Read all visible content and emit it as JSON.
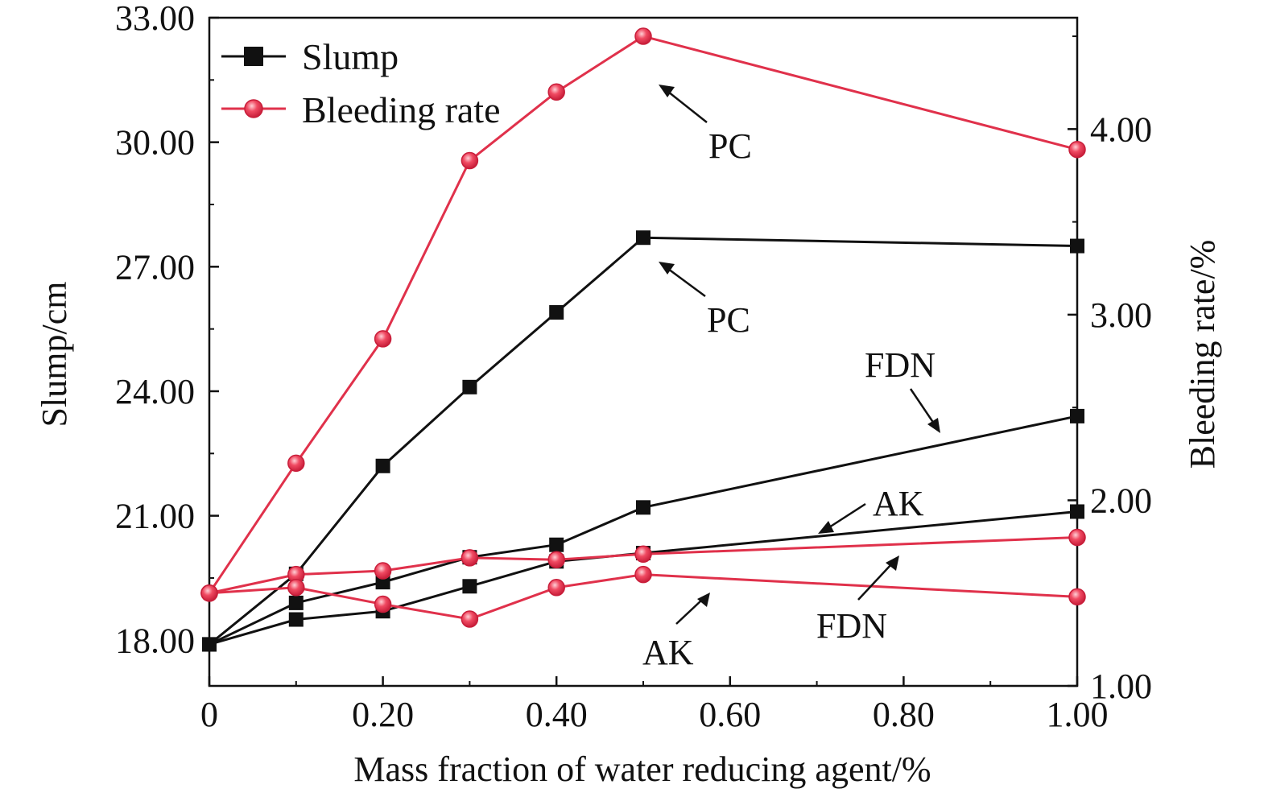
{
  "chart_data": {
    "type": "line",
    "xlabel": "Mass fraction of water reducing agent/%",
    "ylabel": "Slump/cm",
    "y2label": "Bleeding rate/%",
    "xlim": [
      0,
      1.0
    ],
    "ylim": [
      16.9,
      33.0
    ],
    "y2lim": [
      1.0,
      4.6
    ],
    "xticks": [
      "0",
      "0.20",
      "0.40",
      "0.60",
      "0.80",
      "1.00"
    ],
    "xtick_values": [
      0,
      0.2,
      0.4,
      0.6,
      0.8,
      1.0
    ],
    "yticks": [
      "18.00",
      "21.00",
      "24.00",
      "27.00",
      "30.00",
      "33.00"
    ],
    "ytick_values": [
      18,
      21,
      24,
      27,
      30,
      33
    ],
    "y2ticks": [
      "1.00",
      "2.00",
      "3.00",
      "4.00"
    ],
    "y2tick_values": [
      1,
      2,
      3,
      4
    ],
    "legend": {
      "position": "top-left",
      "entries": [
        "Slump",
        "Bleeding rate"
      ]
    },
    "colors": {
      "slump": "#111111",
      "bleeding": "#e0314b"
    },
    "x": [
      0,
      0.1,
      0.2,
      0.3,
      0.4,
      0.5,
      1.0
    ],
    "series": [
      {
        "group": "Slump",
        "agent": "PC",
        "axis": "left",
        "values": [
          17.9,
          19.6,
          22.2,
          24.1,
          25.9,
          27.7,
          27.5
        ]
      },
      {
        "group": "Slump",
        "agent": "FDN",
        "axis": "left",
        "values": [
          17.9,
          18.9,
          19.4,
          20.0,
          20.3,
          21.2,
          23.4
        ]
      },
      {
        "group": "Slump",
        "agent": "AK",
        "axis": "left",
        "values": [
          17.9,
          18.5,
          18.7,
          19.3,
          19.9,
          20.1,
          21.1
        ]
      },
      {
        "group": "Bleeding rate",
        "agent": "PC",
        "axis": "right",
        "values": [
          1.5,
          2.2,
          2.87,
          3.83,
          4.2,
          4.5,
          3.89
        ]
      },
      {
        "group": "Bleeding rate",
        "agent": "FDN",
        "axis": "right",
        "values": [
          1.5,
          1.6,
          1.62,
          1.69,
          1.68,
          1.71,
          1.8
        ]
      },
      {
        "group": "Bleeding rate",
        "agent": "AK",
        "axis": "right",
        "values": [
          1.5,
          1.53,
          1.44,
          1.36,
          1.53,
          1.6,
          1.48
        ]
      }
    ],
    "annotations": [
      {
        "text": "PC",
        "target": "Bleeding rate PC"
      },
      {
        "text": "PC",
        "target": "Slump PC"
      },
      {
        "text": "FDN",
        "target": "Slump FDN"
      },
      {
        "text": "AK",
        "target": "Slump AK"
      },
      {
        "text": "FDN",
        "target": "Bleeding rate FDN"
      },
      {
        "text": "AK",
        "target": "Bleeding rate AK"
      }
    ]
  }
}
